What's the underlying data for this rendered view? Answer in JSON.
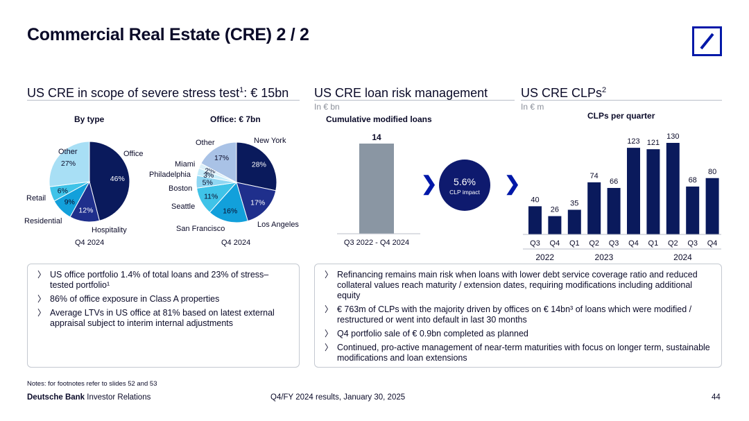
{
  "header": {
    "title": "Commercial Real Estate (CRE) 2 / 2"
  },
  "sections": {
    "stress": {
      "title": "US CRE in scope of severe stress test",
      "sup": "1",
      "suffix": ": € 15bn"
    },
    "risk": {
      "title": "US CRE loan risk management",
      "unit": "In € bn"
    },
    "clps": {
      "title": "US CRE CLPs",
      "sup": "2",
      "unit": "In € m"
    }
  },
  "pies": {
    "by_type": {
      "title": "By type",
      "date": "Q4 2024",
      "slices": [
        {
          "name": "Office",
          "value": 46,
          "label": "46%",
          "color": "#0a1a5c"
        },
        {
          "name": "Hospitality",
          "value": 12,
          "label": "12%",
          "color": "#1f2f8c"
        },
        {
          "name": "Residential",
          "value": 9,
          "label": "9%",
          "color": "#12a0db"
        },
        {
          "name": "Retail",
          "value": 6,
          "label": "6%",
          "color": "#3fc3e8"
        },
        {
          "name": "Other",
          "value": 27,
          "label": "27%",
          "color": "#a8dff5"
        }
      ]
    },
    "office": {
      "title": "Office: € 7bn",
      "date": "Q4 2024",
      "slices": [
        {
          "name": "New York",
          "value": 28,
          "label": "28%",
          "color": "#0a1a5c"
        },
        {
          "name": "Los Angeles",
          "value": 17,
          "label": "17%",
          "color": "#1f2f8c"
        },
        {
          "name": "San Francisco",
          "value": 16,
          "label": "16%",
          "color": "#12a0db"
        },
        {
          "name": "Seattle",
          "value": 11,
          "label": "11%",
          "color": "#3fc3e8"
        },
        {
          "name": "Boston",
          "value": 5,
          "label": "5%",
          "color": "#8fd6f2"
        },
        {
          "name": "Philadelphia",
          "value": 3,
          "label": "3%",
          "color": "#c6ecfa"
        },
        {
          "name": "Miami",
          "value": 2,
          "label": "2%",
          "color": "#dceff8"
        },
        {
          "name": "Other",
          "value": 17,
          "label": "17%",
          "color": "#a9c2e6"
        }
      ]
    }
  },
  "chart_data": [
    {
      "type": "bar",
      "title": "Cumulative modified loans",
      "categories": [
        "Q3 2022 - Q4 2024"
      ],
      "values": [
        14
      ],
      "ylabel": "In € bn",
      "color": "#8a96a3"
    },
    {
      "type": "bar",
      "title": "CLPs per quarter",
      "categories": [
        "Q3",
        "Q4",
        "Q1",
        "Q2",
        "Q3",
        "Q4",
        "Q1",
        "Q2",
        "Q3",
        "Q4"
      ],
      "years": [
        "2022",
        "2023",
        "2024"
      ],
      "values": [
        40,
        26,
        35,
        74,
        66,
        123,
        121,
        130,
        68,
        80
      ],
      "ylabel": "In € m",
      "ylim": [
        0,
        130
      ],
      "color": "#0a1a5c"
    }
  ],
  "clp_impact": {
    "value": "5.6%",
    "label": "CLP impact"
  },
  "left_bullets": [
    "US office portfolio 1.4% of total loans and 23% of stress–tested portfolio¹",
    "86% of office exposure in Class A properties",
    "Average LTVs in US office at 81% based on latest external appraisal subject to interim internal adjustments"
  ],
  "right_bullets": [
    "Refinancing remains main risk when loans with lower debt service coverage ratio and reduced collateral values reach maturity / extension dates, requiring modifications including additional equity",
    "€ 763m of CLPs with the majority driven by offices on € 14bn³ of loans which were modified / restructured or went into default in last 30 months",
    "Q4 portfolio sale of € 0.9bn completed as planned",
    "Continued, pro-active management of near-term maturities with focus on longer term, sustainable modifications and loan extensions"
  ],
  "bullet_glyph": "〉",
  "footer": {
    "note": "Notes: for footnotes refer to slides 52 and 53",
    "brand": "Deutsche Bank",
    "brand_suffix": " Investor Relations",
    "event": "Q4/FY 2024 results, January 30, 2025",
    "page": "44"
  }
}
